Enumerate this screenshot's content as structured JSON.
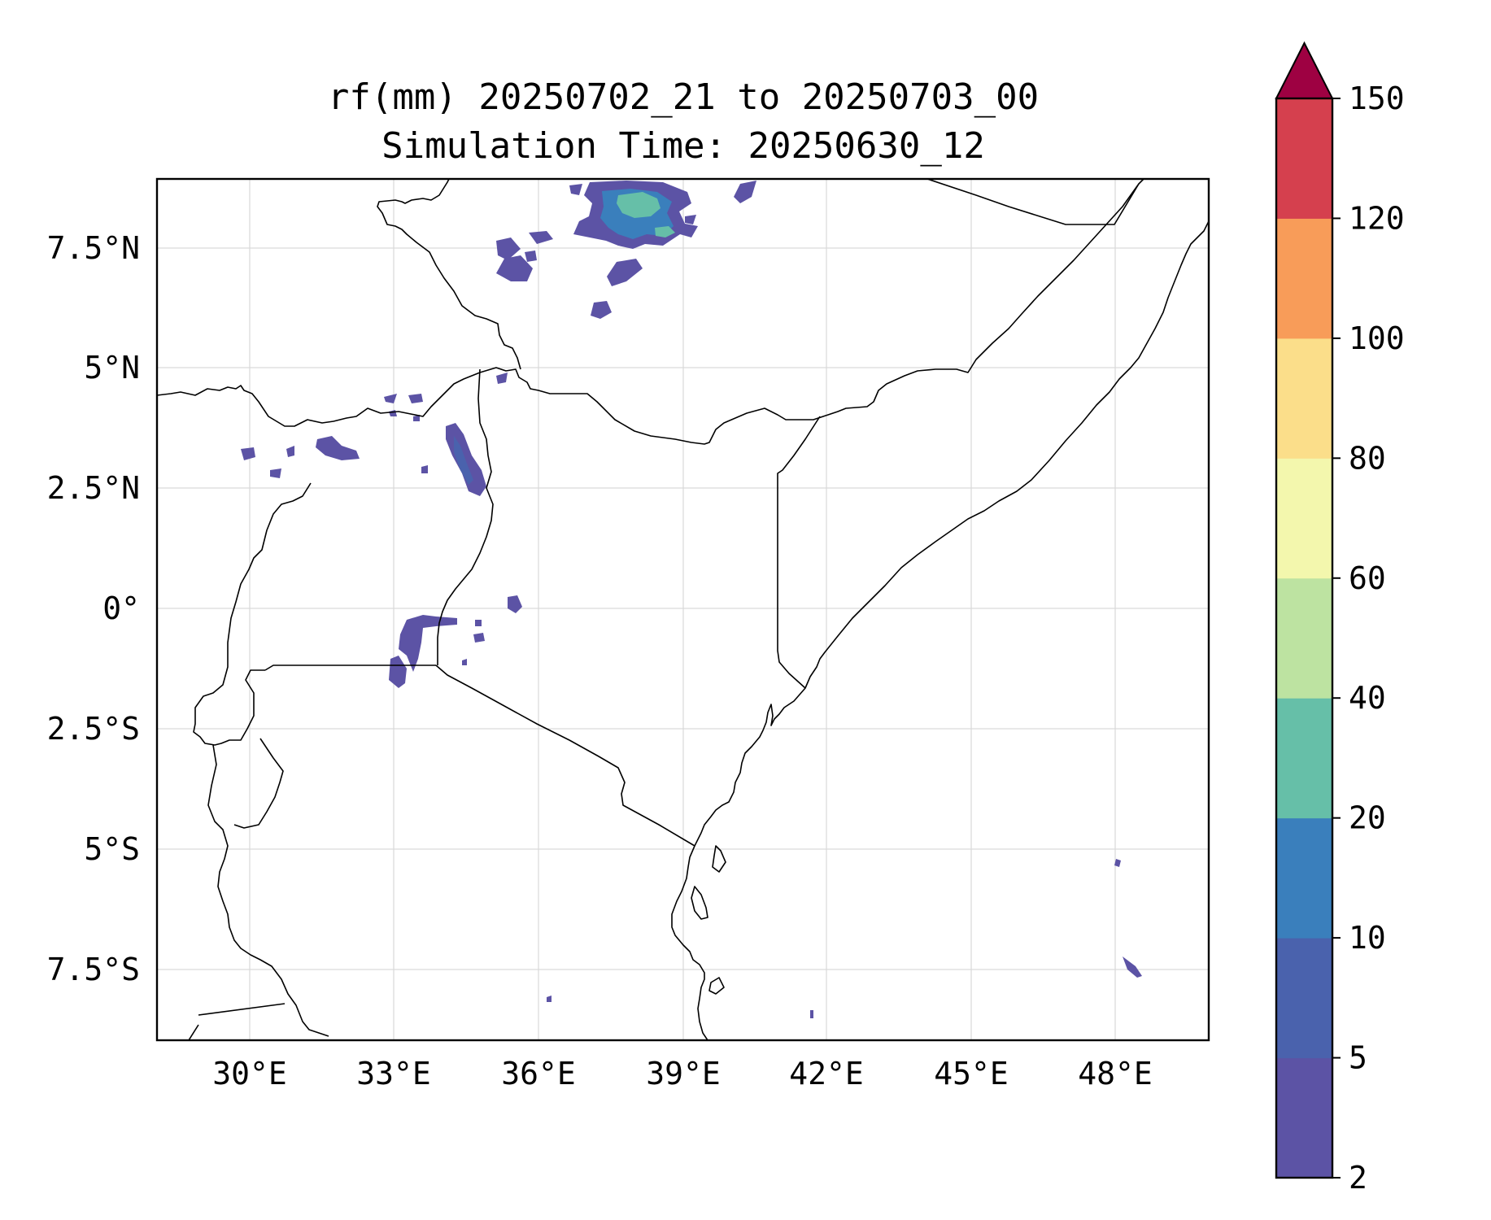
{
  "title": {
    "line1": "rf(mm) 20250702_21 to 20250703_00",
    "line2": "Simulation Time: 20250630_12"
  },
  "axes": {
    "x_ticks": [
      "30°E",
      "33°E",
      "36°E",
      "39°E",
      "42°E",
      "45°E",
      "48°E"
    ],
    "y_ticks": [
      "7.5°N",
      "5°N",
      "2.5°N",
      "0°",
      "2.5°S",
      "5°S",
      "7.5°S"
    ],
    "grid": true
  },
  "colorbar": {
    "levels": [
      "2",
      "5",
      "10",
      "20",
      "40",
      "60",
      "80",
      "100",
      "120",
      "150"
    ],
    "colors": [
      "#5c53a5",
      "#4a62ad",
      "#3a7fbc",
      "#66bfa8",
      "#bde3a1",
      "#f3f7ad",
      "#fbde8a",
      "#f89c59",
      "#d5404e",
      "#9e0142"
    ],
    "extend": "max"
  },
  "chart_data": {
    "type": "heatmap",
    "variable": "rf(mm)",
    "map_extent": {
      "lon": [
        28.1,
        49.9
      ],
      "lat": [
        -8.9,
        8.9
      ]
    },
    "rain_cells": [
      {
        "lon": 38.2,
        "lat": 8.4,
        "value": 25
      },
      {
        "lon": 37.9,
        "lat": 8.1,
        "value": 12
      },
      {
        "lon": 38.6,
        "lat": 7.9,
        "value": 12
      },
      {
        "lon": 34.6,
        "lat": 3.4,
        "value": 7
      },
      {
        "lon": 32.4,
        "lat": 3.3,
        "value": 5
      },
      {
        "lon": 33.4,
        "lat": -0.4,
        "value": 6
      },
      {
        "lon": 35.5,
        "lat": 0.1,
        "value": 5
      }
    ]
  }
}
